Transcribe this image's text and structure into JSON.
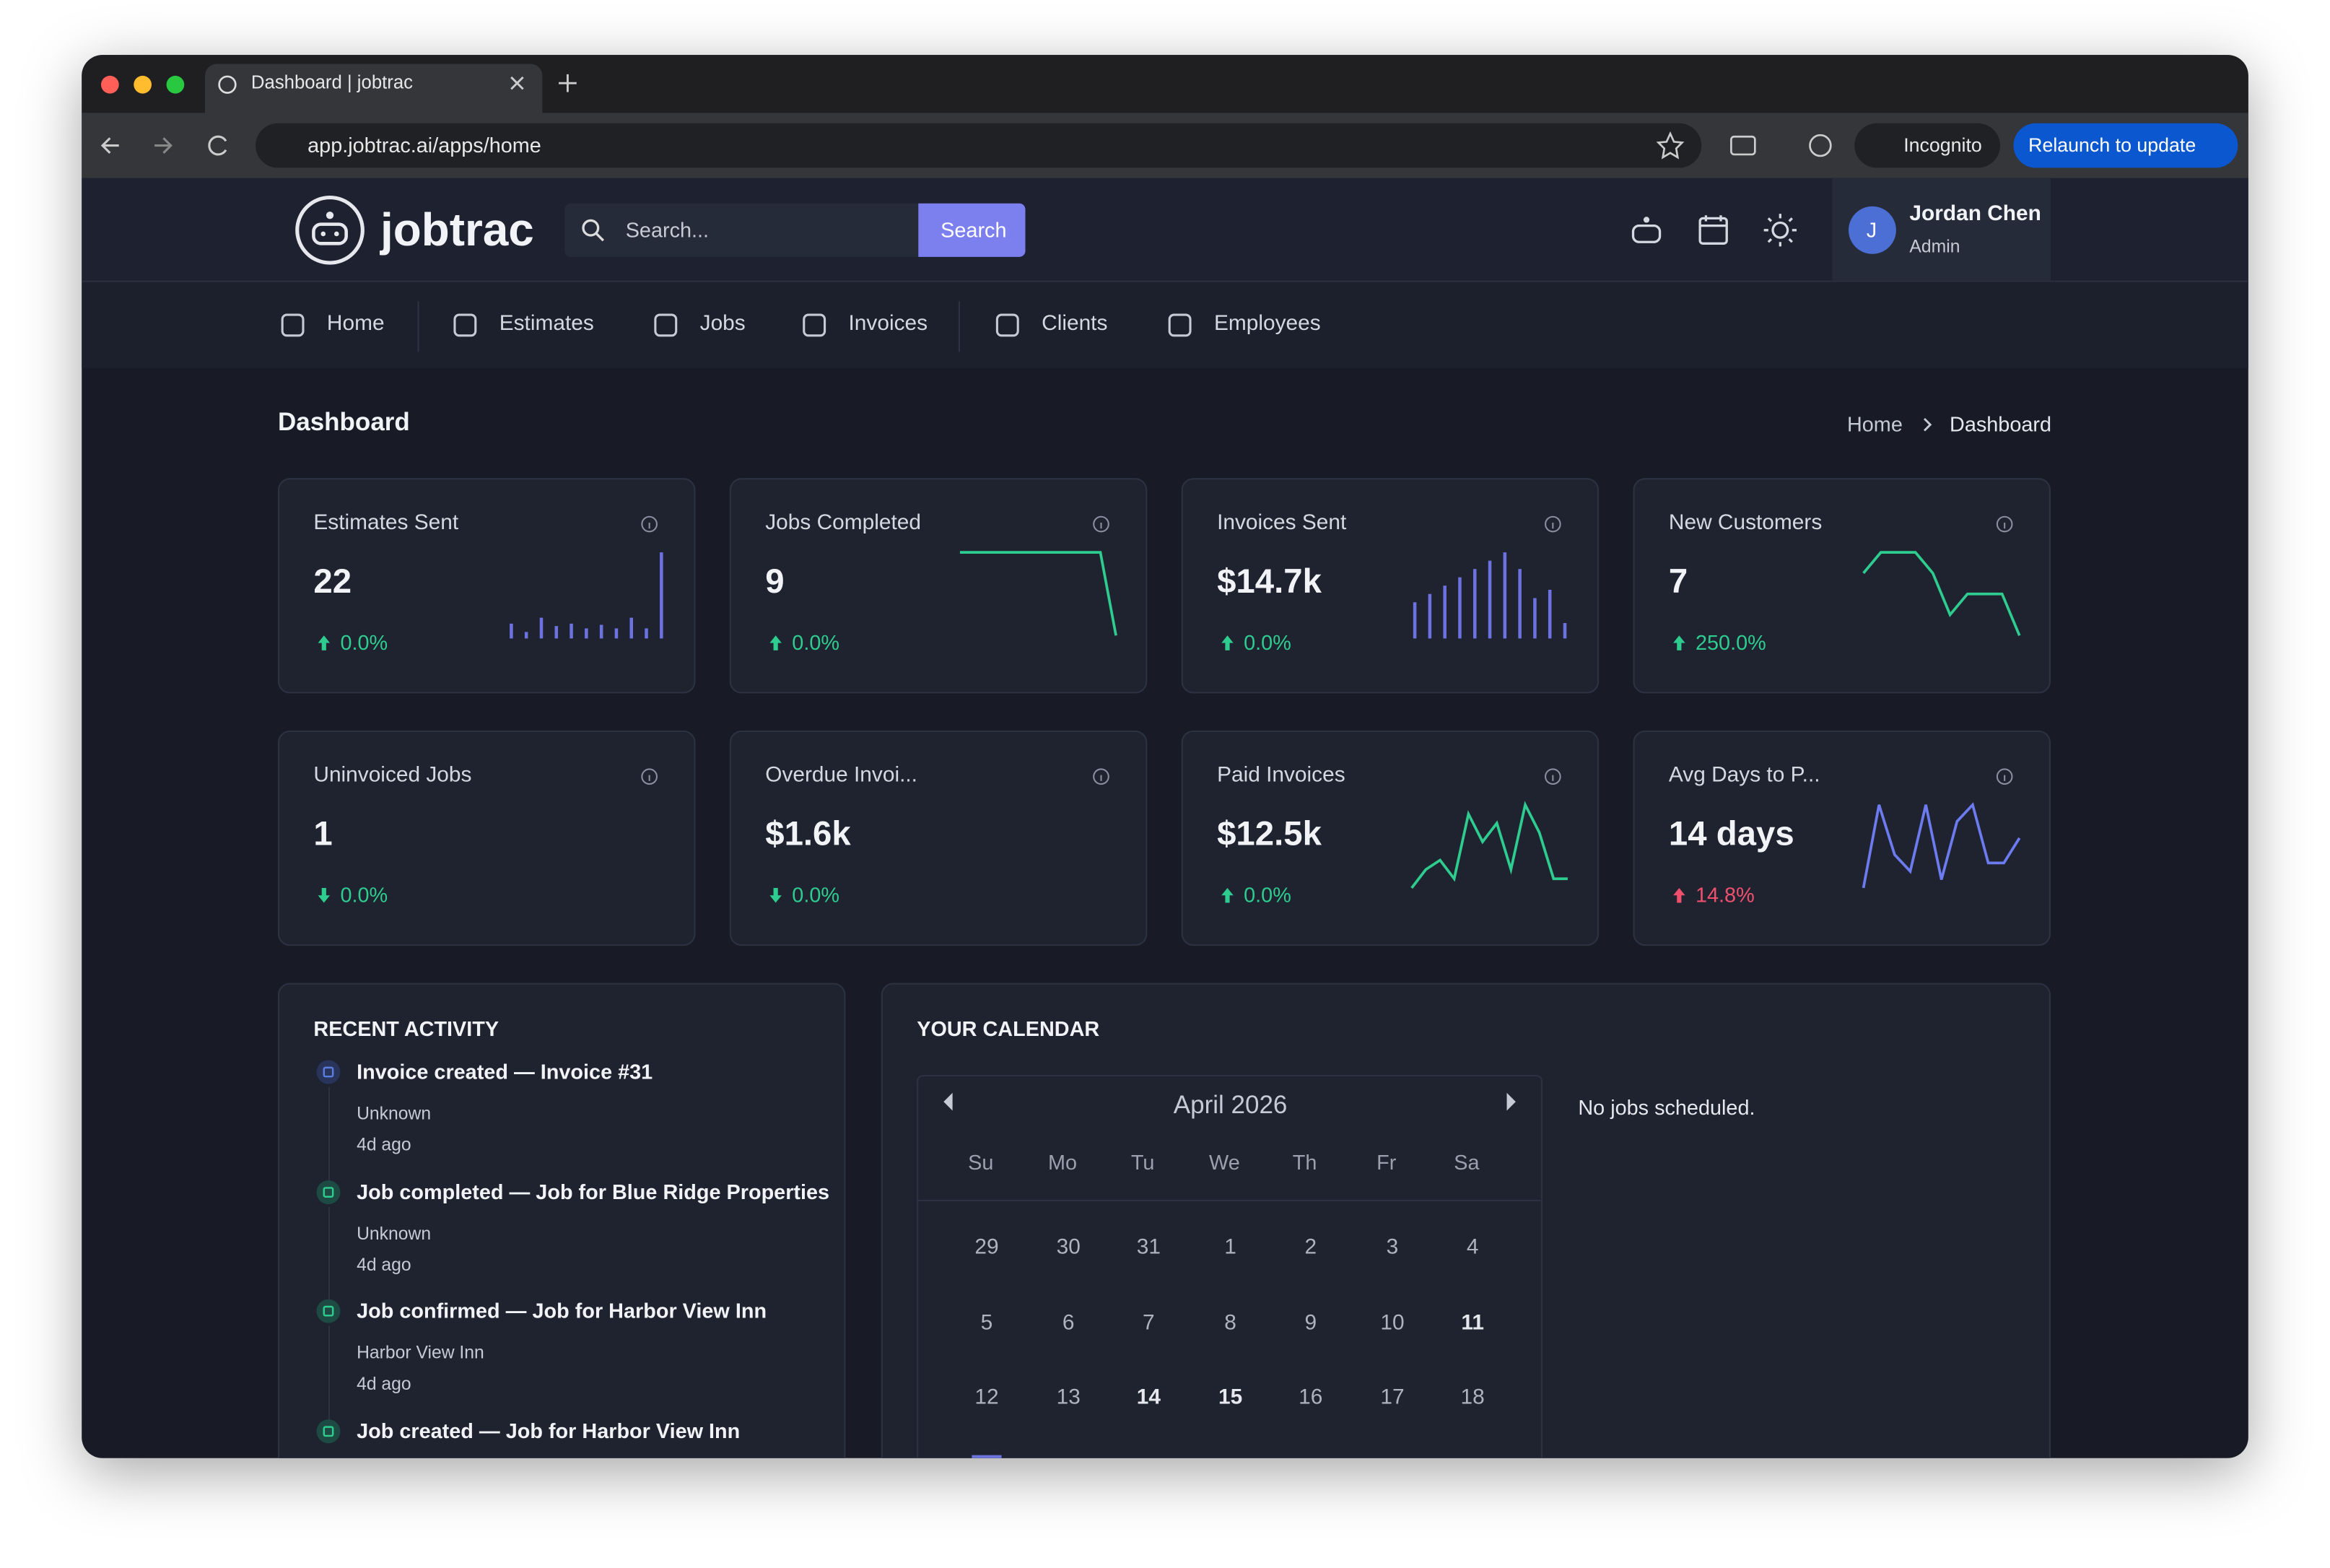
{
  "browser": {
    "tab_title": "Dashboard | jobtrac",
    "url": "app.jobtrac.ai/apps/home",
    "incognito": "Incognito",
    "relaunch": "Relaunch to update"
  },
  "app": {
    "brand": "jobtrac",
    "search_placeholder": "Search...",
    "search_button": "Search",
    "user": {
      "initial": "J",
      "name": "Jordan Chen",
      "role": "Admin"
    },
    "nav": [
      "Home",
      "Estimates",
      "Jobs",
      "Invoices",
      "Clients",
      "Employees"
    ],
    "page_title": "Dashboard",
    "breadcrumb": [
      "Home",
      "Dashboard"
    ]
  },
  "cards": [
    {
      "title": "Estimates Sent",
      "value": "22",
      "change": "0.0%",
      "color": "#2ecc8f",
      "direction": "up",
      "spark_type": "bar",
      "spark": [
        1,
        0.3,
        1.5,
        0.8,
        1,
        0.6,
        0.9,
        0.6,
        1.5,
        0.6,
        7
      ]
    },
    {
      "title": "Jobs Completed",
      "value": "9",
      "change": "0.0%",
      "color": "#2ecc8f",
      "direction": "up",
      "spark_type": "line",
      "spark": [
        10,
        10,
        10,
        10,
        10,
        10,
        10,
        10,
        10,
        10,
        0
      ]
    },
    {
      "title": "Invoices Sent",
      "value": "$14.7k",
      "change": "0.0%",
      "color": "#2ecc8f",
      "direction": "up",
      "spark_type": "bar",
      "spark": [
        4,
        5,
        6,
        7,
        8,
        9,
        10,
        8,
        4.5,
        5.5,
        1.5
      ]
    },
    {
      "title": "New Customers",
      "value": "7",
      "change": "250.0%",
      "color": "#2ecc8f",
      "direction": "up",
      "spark_type": "line",
      "spark": [
        5,
        6,
        6,
        6,
        5,
        3,
        4,
        4,
        4,
        2
      ]
    },
    {
      "title": "Uninvoiced Jobs",
      "value": "1",
      "change": "0.0%",
      "color": "#2ecc8f",
      "direction": "down"
    },
    {
      "title": "Overdue Invoi...",
      "value": "$1.6k",
      "change": "0.0%",
      "color": "#2ecc8f",
      "direction": "down"
    },
    {
      "title": "Paid Invoices",
      "value": "$12.5k",
      "change": "0.0%",
      "color": "#2ecc8f",
      "direction": "up",
      "spark_type": "line",
      "spark": [
        1,
        2,
        2.5,
        1.5,
        5,
        3.5,
        4.5,
        2,
        5.5,
        4,
        1.5,
        1.5
      ]
    },
    {
      "title": "Avg Days to P...",
      "value": "14 days",
      "change": "14.8%",
      "color": "#f0506e",
      "direction": "up",
      "spark_type": "line",
      "spark": [
        1,
        6,
        3,
        2,
        6,
        1.5,
        5,
        6,
        2.5,
        2.5,
        4
      ]
    }
  ],
  "activity": {
    "title": "RECENT ACTIVITY",
    "items": [
      {
        "title": "Invoice created — Invoice #31",
        "sub": "Unknown",
        "time": "4d ago",
        "color": "#5b7de0"
      },
      {
        "title": "Job completed — Job for Blue Ridge Properties",
        "sub": "Unknown",
        "time": "4d ago",
        "color": "#2ecc8f"
      },
      {
        "title": "Job confirmed — Job for Harbor View Inn",
        "sub": "Harbor View Inn",
        "time": "4d ago",
        "color": "#2ecc8f"
      },
      {
        "title": "Job created — Job for Harbor View Inn",
        "color": "#2ecc8f"
      }
    ]
  },
  "calendar": {
    "title": "YOUR CALENDAR",
    "month": "April 2026",
    "weekdays": [
      "Su",
      "Mo",
      "Tu",
      "We",
      "Th",
      "Fr",
      "Sa"
    ],
    "weeks": [
      [
        29,
        30,
        31,
        1,
        2,
        3,
        4
      ],
      [
        5,
        6,
        7,
        8,
        9,
        10,
        11
      ],
      [
        12,
        13,
        14,
        15,
        16,
        17,
        18
      ]
    ],
    "emphasized": [
      [
        1,
        6
      ],
      [
        2,
        2
      ],
      [
        2,
        3
      ]
    ],
    "empty": "No jobs scheduled."
  }
}
